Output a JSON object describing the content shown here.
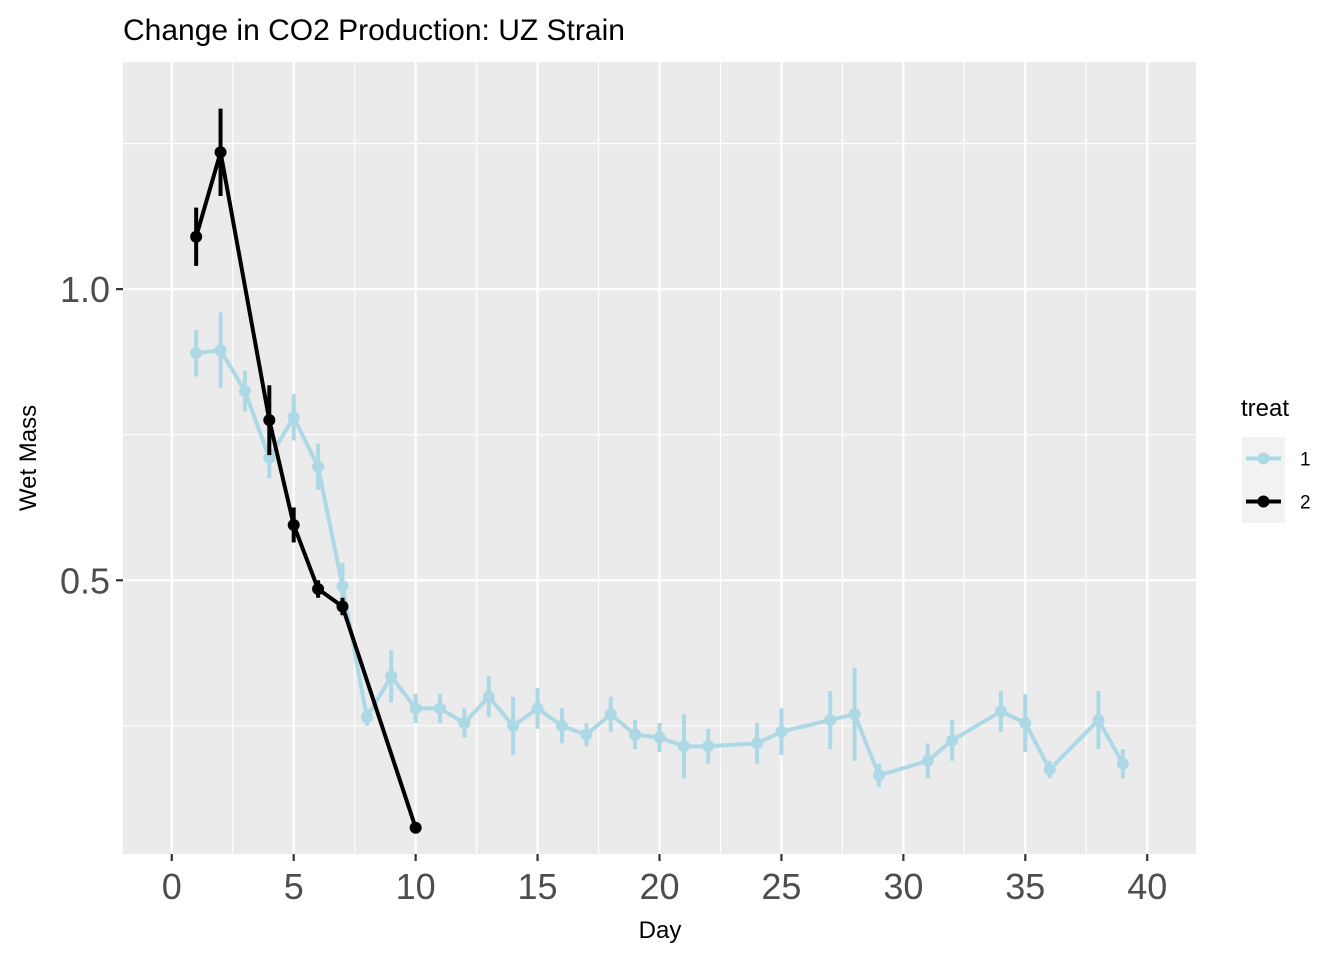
{
  "chart_data": {
    "type": "line",
    "title": "Change in CO2 Production: UZ Strain",
    "xlabel": "Day",
    "ylabel": "Wet Mass",
    "xlim": [
      -2,
      42
    ],
    "ylim": [
      0.03,
      1.39
    ],
    "x_ticks": [
      0,
      5,
      10,
      15,
      20,
      25,
      30,
      35,
      40
    ],
    "x_tick_labels": [
      "0",
      "5",
      "10",
      "15",
      "20",
      "25",
      "30",
      "35",
      "40"
    ],
    "y_ticks": [
      0.5,
      1.0
    ],
    "y_tick_labels": [
      "0.5",
      "1.0"
    ],
    "grid": true,
    "legend": {
      "title": "treat",
      "position": "right"
    },
    "series": [
      {
        "name": "1",
        "color": "#add8e6",
        "x": [
          1,
          2,
          3,
          4,
          5,
          6,
          7,
          8,
          9,
          10,
          11,
          12,
          13,
          14,
          15,
          16,
          17,
          18,
          19,
          20,
          21,
          22,
          24,
          25,
          27,
          28,
          29,
          31,
          32,
          34,
          35,
          36,
          38,
          39
        ],
        "y": [
          0.89,
          0.895,
          0.825,
          0.71,
          0.78,
          0.695,
          0.49,
          0.265,
          0.335,
          0.28,
          0.28,
          0.255,
          0.3,
          0.25,
          0.28,
          0.25,
          0.235,
          0.27,
          0.235,
          0.23,
          0.215,
          0.215,
          0.22,
          0.24,
          0.26,
          0.27,
          0.165,
          0.19,
          0.225,
          0.275,
          0.255,
          0.175,
          0.26,
          0.185
        ],
        "err": [
          0.04,
          0.065,
          0.035,
          0.035,
          0.04,
          0.04,
          0.04,
          0.015,
          0.045,
          0.025,
          0.025,
          0.025,
          0.035,
          0.05,
          0.035,
          0.03,
          0.02,
          0.03,
          0.025,
          0.025,
          0.055,
          0.03,
          0.035,
          0.04,
          0.05,
          0.08,
          0.02,
          0.03,
          0.035,
          0.035,
          0.05,
          0.015,
          0.05,
          0.025
        ]
      },
      {
        "name": "2",
        "color": "#000000",
        "x": [
          1,
          2,
          4,
          5,
          6,
          7,
          10
        ],
        "y": [
          1.09,
          1.235,
          0.775,
          0.595,
          0.485,
          0.455,
          0.075
        ],
        "err": [
          0.05,
          0.075,
          0.06,
          0.03,
          0.015,
          0.015,
          0.005
        ]
      }
    ]
  }
}
